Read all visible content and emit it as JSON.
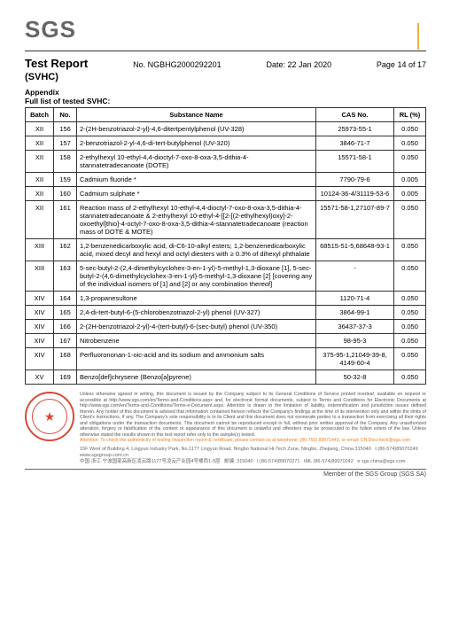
{
  "logo": "SGS",
  "accent_bar_color": "#e8b04a",
  "header": {
    "title": "Test Report",
    "report_no_label": "No.",
    "report_no": "NGBHG2000292201",
    "date_label": "Date:",
    "date": "22 Jan 2020",
    "page": "Page 14 of 17",
    "subtitle": "(SVHC)",
    "appendix": "Appendix",
    "full_list": "Full list of tested SVHC:"
  },
  "table": {
    "cols": [
      "Batch",
      "No.",
      "Substance Name",
      "CAS No.",
      "RL (%)"
    ],
    "rows": [
      {
        "b": "XII",
        "n": "156",
        "s": "2-(2H-benzotriazol-2-yl)-4,6-ditertpentylphenol (UV-328)",
        "c": "25973-55-1",
        "r": "0.050"
      },
      {
        "b": "XII",
        "n": "157",
        "s": "2-benzotriazol-2-yl-4,6-di-tert-butylphenol (UV-320)",
        "c": "3846-71-7",
        "r": "0.050"
      },
      {
        "b": "XII",
        "n": "158",
        "s": "2-ethylhexyl 10-ethyl-4,4-dioctyl-7-oxo-8-oxa-3,5-dithia-4-stannatetradecanoate (DOTE)",
        "c": "15571-58-1",
        "r": "0.050"
      },
      {
        "b": "XII",
        "n": "159",
        "s": "Cadmium fluoride *",
        "c": "7790-79-6",
        "r": "0.005"
      },
      {
        "b": "XII",
        "n": "160",
        "s": "Cadmium sulphate *",
        "c": "10124-36-4/31119-53-6",
        "r": "0.005"
      },
      {
        "b": "XII",
        "n": "161",
        "s": "Reaction mass of 2-ethylhexyl 10-ethyl-4,4-dioctyl-7-oxo-8-oxa-3,5-dithia-4-stannatetradecanoate & 2-ethylhexyl 10-ethyl-4-[[2-[(2-ethylhexyl)oxy]-2-oxoethyl]thio]-4-octyl-7-oxo-8-oxa-3,5-dithia-4-stannatetradecanoate (reaction mass of DOTE & MOTE)",
        "c": "15571-58-1,27107-89-7",
        "r": "0.050"
      },
      {
        "b": "XIII",
        "n": "162",
        "s": "1,2-benzenedicarboxylic acid, di-C6-10-alkyl esters; 1,2-benzenedicarboxylic acid, mixed decyl and hexyl and octyl diesters with ≥ 0.3% of dihexyl phthalate",
        "c": "68515-51-5,68648-93-1",
        "r": "0.050"
      },
      {
        "b": "XIII",
        "n": "163",
        "s": "5-sec-butyl-2-(2,4-dimethylcyclohex-3-en-1-yl)-5-methyl-1,3-dioxane [1], 5-sec-butyl-2-(4,6-dimethylcyclohex-3-en-1-yl)-5-methyl-1,3-dioxane [2] [covering any of the individual isomers of [1] and [2] or any combination thereof]",
        "c": "-",
        "r": "0.050"
      },
      {
        "b": "XIV",
        "n": "164",
        "s": "1,3-propanesultone",
        "c": "1120-71-4",
        "r": "0.050"
      },
      {
        "b": "XIV",
        "n": "165",
        "s": "2,4-di-tert-butyl-6-(5-chlorobenzotriazol-2-yl) phenol (UV-327)",
        "c": "3864-99-1",
        "r": "0.050"
      },
      {
        "b": "XIV",
        "n": "166",
        "s": "2-(2H-benzotriazol-2-yl)-4-(tert-butyl)-6-(sec-butyl) phenol (UV-350)",
        "c": "36437-37-3",
        "r": "0.050"
      },
      {
        "b": "XIV",
        "n": "167",
        "s": "Nitrobenzene",
        "c": "98-95-3",
        "r": "0.050"
      },
      {
        "b": "XIV",
        "n": "168",
        "s": "Perfluorononan-1-oic-acid and its sodium and ammonium salts",
        "c": "375-95-1,21049-39-8, 4149-60-4",
        "r": "0.050"
      },
      {
        "b": "XV",
        "n": "169",
        "s": "Benzo[def]chrysene (Benzo[a]pyrene)",
        "c": "50-32-8",
        "r": "0.050"
      }
    ]
  },
  "footer": {
    "fine_print": "Unless otherwise agreed in writing, this document is issued by the Company subject to its General Conditions of Service printed overleaf, available on request or accessible at http://www.sgs.com/en/Terms-and-Conditions.aspx and, for electronic format documents, subject to Terms and Conditions for Electronic Documents at http://www.sgs.com/en/Terms-and-Conditions/Terms-e-Document.aspx. Attention is drawn to the limitation of liability, indemnification and jurisdiction issues defined therein. Any holder of this document is advised that information contained hereon reflects the Company's findings at the time of its intervention only and within the limits of Client's instructions, if any. The Company's sole responsibility is to its Client and this document does not exonerate parties to a transaction from exercising all their rights and obligations under the transaction documents. This document cannot be reproduced except in full, without prior written approval of the Company. Any unauthorized alteration, forgery or falsification of the content or appearance of this document is unlawful and offenders may be prosecuted to the fullest extent of the law. Unless otherwise stated the results shown in this test report refer only to the sample(s) tested.",
    "attention": "Attention: To check the authenticity of testing /inspection report & certificate, please contact us at telephone: (86-755) 83071443, or email: CN.Doccheck@sgs.com",
    "addr": "15F West of Building 4, Lingyun Industry Park, No.1177 Lingyun Road, Ningbo National Hi-Tech Zone, Ningbo, Zhejiang, China  315040",
    "tel": "t (86-574)89070249",
    "web": "www.sgsgroup.com.cn",
    "addr_cn": "中国·浙江·宁波国家高新区凌云路1177号凌云产业园4号楼西1-5层",
    "zip": "邮编: 315040",
    "tel2": "t (86-574)89070271",
    "tel3": "tML (86-574)89070242",
    "email": "e sgs.china@sgs.com",
    "member": "Member of the SGS Group (SGS SA)"
  }
}
